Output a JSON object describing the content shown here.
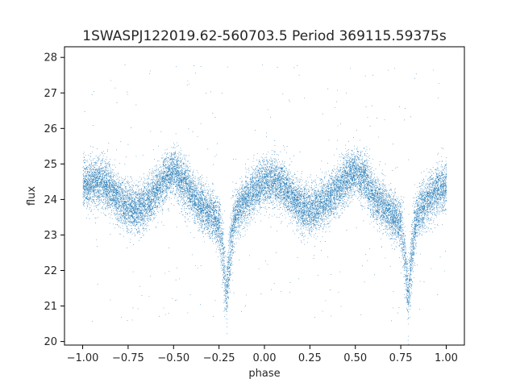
{
  "chart_data": {
    "type": "scatter",
    "title": "1SWASPJ122019.62-560703.5 Period 369115.59375s",
    "xlabel": "phase",
    "ylabel": "flux",
    "xlim": [
      -1.1,
      1.1
    ],
    "ylim": [
      19.9,
      28.3
    ],
    "x_ticks": [
      -1.0,
      -0.75,
      -0.5,
      -0.25,
      0.0,
      0.25,
      0.5,
      0.75,
      1.0
    ],
    "x_tick_labels": [
      "−1.00",
      "−0.75",
      "−0.50",
      "−0.25",
      "0.00",
      "0.25",
      "0.50",
      "0.75",
      "1.00"
    ],
    "y_ticks": [
      20,
      21,
      22,
      23,
      24,
      25,
      26,
      27,
      28
    ],
    "y_tick_labels": [
      "20",
      "21",
      "22",
      "23",
      "24",
      "25",
      "26",
      "27",
      "28"
    ],
    "grid": false,
    "marker_color": "#1f77b4",
    "approx_point_count": 20000,
    "series": [
      {
        "x": [
          -1.0,
          -0.95,
          -0.9,
          -0.85,
          -0.8,
          -0.75,
          -0.7,
          -0.65,
          -0.6,
          -0.55,
          -0.5,
          -0.45,
          -0.4,
          -0.35,
          -0.3,
          -0.25,
          -0.23,
          -0.21,
          -0.19,
          -0.17,
          -0.15,
          -0.1,
          -0.05,
          0.0,
          0.05,
          0.1,
          0.15,
          0.2,
          0.25,
          0.3,
          0.35,
          0.4,
          0.45,
          0.5,
          0.55,
          0.6,
          0.65,
          0.7,
          0.75,
          0.77,
          0.79,
          0.81,
          0.83,
          0.85,
          0.9,
          0.95,
          1.0
        ],
        "y": [
          24.4,
          24.5,
          24.5,
          24.3,
          24.0,
          23.8,
          23.7,
          23.9,
          24.2,
          24.6,
          24.8,
          24.5,
          24.1,
          23.8,
          23.6,
          23.3,
          22.5,
          21.2,
          22.6,
          23.4,
          23.7,
          24.0,
          24.3,
          24.5,
          24.5,
          24.4,
          24.1,
          23.8,
          23.7,
          23.8,
          24.0,
          24.3,
          24.6,
          24.8,
          24.6,
          24.1,
          23.8,
          23.6,
          23.3,
          22.5,
          21.2,
          22.6,
          23.4,
          23.7,
          24.0,
          24.3,
          24.4
        ]
      }
    ]
  }
}
